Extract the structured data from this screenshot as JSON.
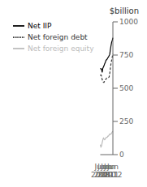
{
  "chart_data": {
    "type": "line",
    "ylabel": "$billion",
    "categories": [
      "Jun\n2008",
      null,
      null,
      null,
      null,
      "Jun\n2009",
      null,
      null,
      null,
      null,
      "Jun\n2010",
      null,
      null,
      null,
      null,
      "Jun\n2011",
      null,
      null,
      null,
      null,
      "Jun\n2012"
    ],
    "series": [
      {
        "name": "Net IIP",
        "color": "#000000",
        "line_style": "solid",
        "values": [
          650,
          645,
          645,
          620,
          650,
          660,
          670,
          685,
          695,
          710,
          715,
          720,
          730,
          735,
          745,
          755,
          790,
          820,
          845,
          860,
          880
        ]
      },
      {
        "name": "Net foreign equity",
        "color": "#bbbbbb",
        "line_style": "solid",
        "values": [
          75,
          58,
          65,
          90,
          110,
          125,
          118,
          112,
          118,
          128,
          130,
          130,
          140,
          140,
          148,
          155,
          152,
          155,
          162,
          172,
          175
        ]
      },
      {
        "name": "Net foreign debt",
        "color": "#333333",
        "line_style": "dashed",
        "values": [
          595,
          600,
          590,
          565,
          555,
          545,
          545,
          555,
          560,
          570,
          575,
          578,
          577,
          580,
          585,
          610,
          650,
          685,
          710,
          735,
          760
        ]
      }
    ],
    "ylim": [
      0,
      1000
    ],
    "yticks": [
      0,
      250,
      500,
      750,
      1000
    ],
    "grid": false,
    "legend": "upper left"
  }
}
